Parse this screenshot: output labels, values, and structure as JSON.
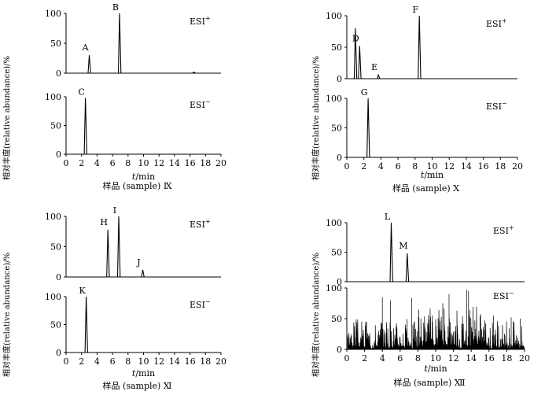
{
  "x_ticks": [
    "0",
    "2",
    "4",
    "6",
    "8",
    "10",
    "12",
    "14",
    "16",
    "18",
    "20"
  ],
  "y_ticks": [
    "0",
    "50",
    "100"
  ],
  "xlabel_italic": "t",
  "xlabel_rest": "/min",
  "ylabel": "相对丰度(relative abundance)/%",
  "esi_pos_label": "ESI",
  "esi_neg_label": "ESI",
  "esi_pos_sup": "+",
  "esi_neg_sup": "−",
  "chart_data": [
    {
      "type": "line",
      "caption": "样品 (sample) Ⅸ",
      "xlim": [
        0,
        20
      ],
      "ylim": [
        0,
        100
      ],
      "positive": {
        "peaks": [
          {
            "x": 3.0,
            "y": 30,
            "label": "A"
          },
          {
            "x": 6.9,
            "y": 100,
            "label": "B"
          },
          {
            "x": 16.5,
            "y": 2,
            "label": ""
          }
        ]
      },
      "negative": {
        "peaks": [
          {
            "x": 2.5,
            "y": 98,
            "label": "C"
          }
        ]
      }
    },
    {
      "type": "line",
      "caption": "样品 (sample) Ⅹ",
      "xlim": [
        0,
        20
      ],
      "ylim": [
        0,
        100
      ],
      "positive": {
        "peaks": [
          {
            "x": 1.0,
            "y": 80,
            "label": ""
          },
          {
            "x": 1.5,
            "y": 52,
            "label": "D"
          },
          {
            "x": 3.7,
            "y": 6,
            "label": "E"
          },
          {
            "x": 8.5,
            "y": 100,
            "label": "F"
          }
        ]
      },
      "negative": {
        "peaks": [
          {
            "x": 2.5,
            "y": 100,
            "label": "G"
          }
        ]
      }
    },
    {
      "type": "line",
      "caption": "样品 (sample) Ⅺ",
      "xlim": [
        0,
        20
      ],
      "ylim": [
        0,
        100
      ],
      "positive": {
        "peaks": [
          {
            "x": 5.4,
            "y": 78,
            "label": "H"
          },
          {
            "x": 6.8,
            "y": 100,
            "label": "I"
          },
          {
            "x": 9.9,
            "y": 12,
            "label": "J"
          }
        ]
      },
      "negative": {
        "peaks": [
          {
            "x": 2.6,
            "y": 100,
            "label": "K"
          }
        ]
      }
    },
    {
      "type": "line",
      "caption": "样品 (sample) Ⅻ",
      "xlim": [
        0,
        20
      ],
      "ylim": [
        0,
        100
      ],
      "positive": {
        "peaks": [
          {
            "x": 5.0,
            "y": 100,
            "label": "L"
          },
          {
            "x": 6.8,
            "y": 48,
            "label": "M"
          }
        ]
      },
      "negative": {
        "noise": true,
        "peaks": [
          {
            "x": 4.0,
            "y": 85,
            "label": ""
          },
          {
            "x": 4.9,
            "y": 80,
            "label": ""
          },
          {
            "x": 7.3,
            "y": 84,
            "label": ""
          },
          {
            "x": 10.8,
            "y": 75,
            "label": ""
          },
          {
            "x": 11.5,
            "y": 90,
            "label": ""
          },
          {
            "x": 13.5,
            "y": 97,
            "label": ""
          },
          {
            "x": 13.7,
            "y": 95,
            "label": ""
          },
          {
            "x": 16.5,
            "y": 55,
            "label": ""
          },
          {
            "x": 18.5,
            "y": 52,
            "label": ""
          },
          {
            "x": 19.5,
            "y": 50,
            "label": ""
          }
        ]
      }
    }
  ]
}
